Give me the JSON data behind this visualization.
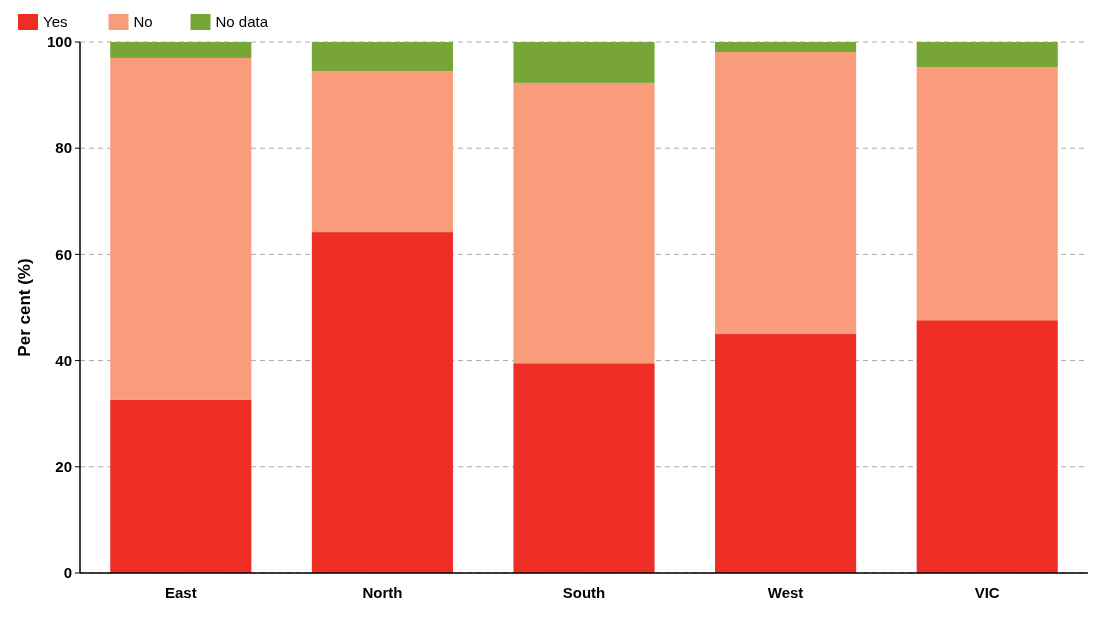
{
  "chart_data": {
    "type": "bar",
    "stacked": true,
    "ylabel": "Per cent (%)",
    "categories": [
      "East",
      "North",
      "South",
      "West",
      "VIC"
    ],
    "series": [
      {
        "name": "Yes",
        "color": "#ee2e24",
        "values": [
          32.6,
          64.2,
          39.5,
          45.0,
          47.6
        ]
      },
      {
        "name": "No",
        "color": "#f89c7c",
        "values": [
          64.4,
          30.3,
          52.8,
          53.1,
          47.7
        ]
      },
      {
        "name": "No data",
        "color": "#77a537",
        "values": [
          3.0,
          5.5,
          7.7,
          1.9,
          4.7
        ]
      }
    ],
    "ylim": [
      0,
      100
    ],
    "yticks": [
      0,
      20,
      40,
      60,
      80,
      100
    ],
    "grid": "y",
    "legend": "top left"
  }
}
